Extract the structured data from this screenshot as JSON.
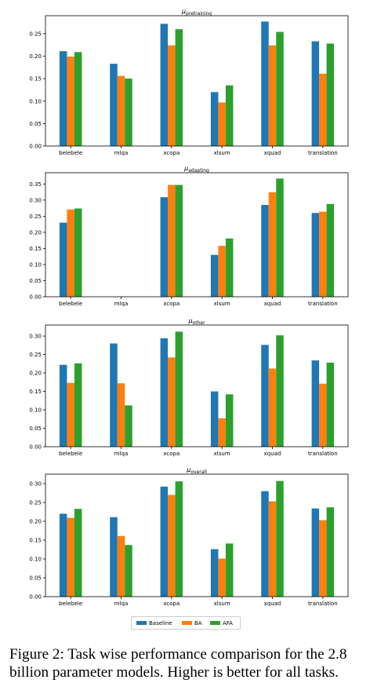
{
  "colors": {
    "Baseline": "#1f77b4",
    "BA": "#ff7f0e",
    "AFA": "#2ca02c"
  },
  "legend": [
    "Baseline",
    "BA",
    "AFA"
  ],
  "caption": {
    "line1": "Figure 2: Task wise performance comparison for the 2.8",
    "line2": "billion parameter models. Higher is better for all tasks."
  },
  "chart_data": [
    {
      "type": "bar",
      "title": "μ",
      "title_sub": "pretraining",
      "categories": [
        "belebele",
        "mlqa",
        "xcopa",
        "xlsum",
        "xquad",
        "translation"
      ],
      "ylim": [
        0,
        0.29
      ],
      "yticks": [
        "0.00",
        "0.05",
        "0.10",
        "0.15",
        "0.20",
        "0.25"
      ],
      "ytick_values": [
        0,
        0.05,
        0.1,
        0.15,
        0.2,
        0.25
      ],
      "series": [
        {
          "name": "Baseline",
          "values": [
            0.211,
            0.183,
            0.272,
            0.12,
            0.277,
            0.233
          ]
        },
        {
          "name": "BA",
          "values": [
            0.199,
            0.156,
            0.224,
            0.097,
            0.224,
            0.161
          ]
        },
        {
          "name": "AFA",
          "values": [
            0.209,
            0.15,
            0.26,
            0.135,
            0.254,
            0.228
          ]
        }
      ]
    },
    {
      "type": "bar",
      "title": "μ",
      "title_sub": "adapting",
      "categories": [
        "belebele",
        "mlqa",
        "xcopa",
        "xlsum",
        "xquad",
        "translation"
      ],
      "ylim": [
        0,
        0.385
      ],
      "yticks": [
        "0.00",
        "0.05",
        "0.10",
        "0.15",
        "0.20",
        "0.25",
        "0.30",
        "0.35"
      ],
      "ytick_values": [
        0,
        0.05,
        0.1,
        0.15,
        0.2,
        0.25,
        0.3,
        0.35
      ],
      "series": [
        {
          "name": "Baseline",
          "values": [
            0.23,
            0,
            0.309,
            0.13,
            0.285,
            0.26
          ]
        },
        {
          "name": "BA",
          "values": [
            0.271,
            0,
            0.347,
            0.158,
            0.324,
            0.264
          ]
        },
        {
          "name": "AFA",
          "values": [
            0.274,
            0,
            0.347,
            0.181,
            0.367,
            0.288
          ]
        }
      ]
    },
    {
      "type": "bar",
      "title": "μ",
      "title_sub": "other",
      "categories": [
        "belebele",
        "mlqa",
        "xcopa",
        "xlsum",
        "xquad",
        "translation"
      ],
      "ylim": [
        0,
        0.33
      ],
      "yticks": [
        "0.00",
        "0.05",
        "0.10",
        "0.15",
        "0.20",
        "0.25",
        "0.30"
      ],
      "ytick_values": [
        0,
        0.05,
        0.1,
        0.15,
        0.2,
        0.25,
        0.3
      ],
      "series": [
        {
          "name": "Baseline",
          "values": [
            0.222,
            0.28,
            0.294,
            0.15,
            0.276,
            0.234
          ]
        },
        {
          "name": "BA",
          "values": [
            0.173,
            0.172,
            0.242,
            0.077,
            0.212,
            0.171
          ]
        },
        {
          "name": "AFA",
          "values": [
            0.226,
            0.112,
            0.312,
            0.142,
            0.302,
            0.228
          ]
        }
      ]
    },
    {
      "type": "bar",
      "title": "μ",
      "title_sub": "overall",
      "categories": [
        "belebele",
        "mlqa",
        "xcopa",
        "xlsum",
        "xquad",
        "translation"
      ],
      "ylim": [
        0,
        0.325
      ],
      "yticks": [
        "0.00",
        "0.05",
        "0.10",
        "0.15",
        "0.20",
        "0.25",
        "0.30"
      ],
      "ytick_values": [
        0,
        0.05,
        0.1,
        0.15,
        0.2,
        0.25,
        0.3
      ],
      "series": [
        {
          "name": "Baseline",
          "values": [
            0.22,
            0.211,
            0.292,
            0.126,
            0.28,
            0.234
          ]
        },
        {
          "name": "BA",
          "values": [
            0.209,
            0.161,
            0.27,
            0.101,
            0.253,
            0.203
          ]
        },
        {
          "name": "AFA",
          "values": [
            0.233,
            0.137,
            0.306,
            0.141,
            0.307,
            0.237
          ]
        }
      ]
    }
  ]
}
